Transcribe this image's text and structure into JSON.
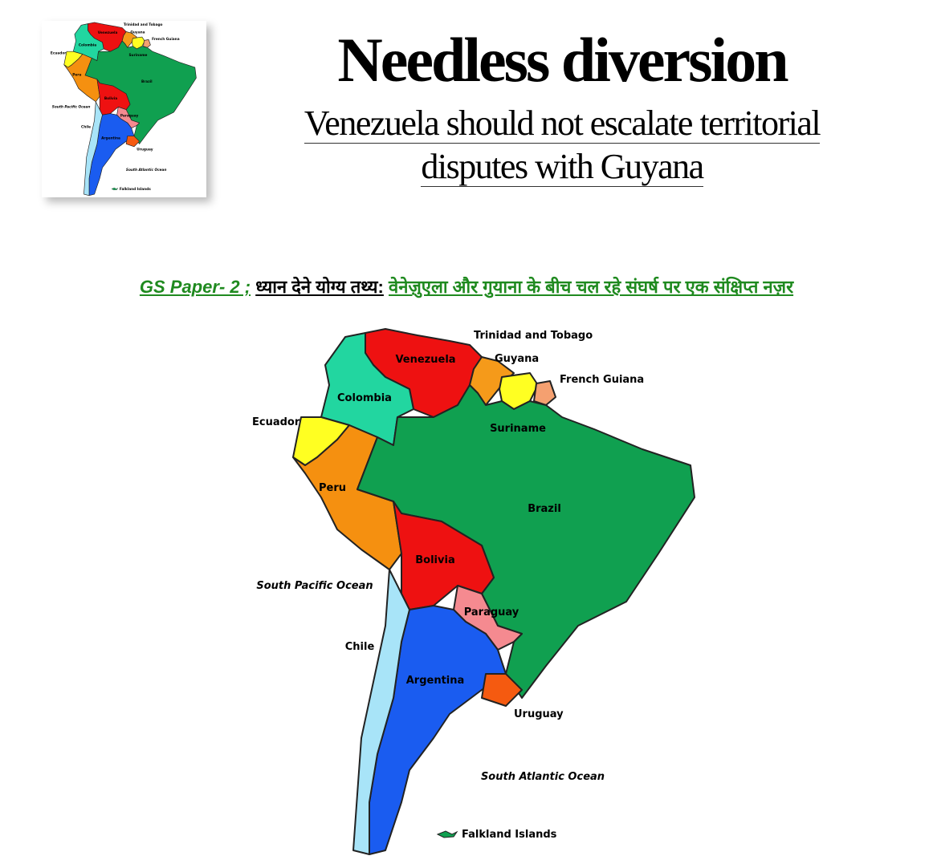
{
  "header": {
    "title": "Needless diversion",
    "subtitle": [
      "Venezuela should not escalate territorial",
      "disputes with Guyana"
    ]
  },
  "tagline": {
    "paper": "GS Paper- 2 ;",
    "label": "ध्यान देने योग्य तथ्य:",
    "topic": "वेनेज़ुएला और गुयाना के बीच चल रहे संघर्ष पर एक संक्षिप्त नज़र"
  },
  "map": {
    "countries": [
      {
        "name": "Venezuela",
        "color": "#ee1111"
      },
      {
        "name": "Guyana",
        "color": "#f59a1a"
      },
      {
        "name": "Suriname",
        "color": "#ffff22"
      },
      {
        "name": "French Guiana",
        "color": "#f5a070"
      },
      {
        "name": "Colombia",
        "color": "#22d6a0"
      },
      {
        "name": "Ecuador",
        "color": "#ffff22"
      },
      {
        "name": "Peru",
        "color": "#f59010"
      },
      {
        "name": "Brazil",
        "color": "#10a050"
      },
      {
        "name": "Bolivia",
        "color": "#ee1111"
      },
      {
        "name": "Paraguay",
        "color": "#f58a90"
      },
      {
        "name": "Argentina",
        "color": "#1a5cf0"
      },
      {
        "name": "Uruguay",
        "color": "#f55a10"
      },
      {
        "name": "Chile",
        "color": "#a8e4f8"
      }
    ],
    "other_labels": [
      "Trinidad and Tobago",
      "South Pacific Ocean",
      "South Atlantic Ocean",
      "Falkland Islands"
    ]
  }
}
